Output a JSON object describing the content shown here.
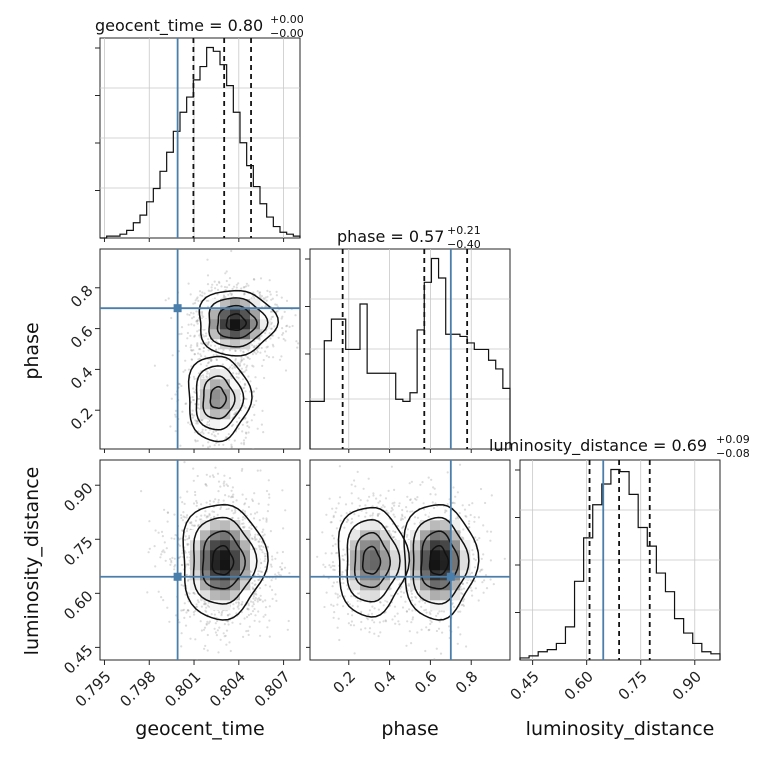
{
  "chart_data": {
    "type": "corner",
    "colors": {
      "truth": "#4a7eab",
      "quantile": "#111111",
      "hist": "#111111",
      "density": "#000000"
    },
    "parameters": [
      {
        "name": "geocent_time",
        "axis_label": "geocent_time",
        "title_main": "geocent_time = 0.80",
        "title_plus": "+0.00",
        "title_minus": "−0.00",
        "range": [
          0.7947,
          0.8081
        ],
        "ticks": [
          0.795,
          0.798,
          0.801,
          0.804,
          0.807
        ],
        "tick_labels": [
          "0.795",
          "0.798",
          "0.801",
          "0.804",
          "0.807"
        ],
        "truth": 0.7999,
        "quantiles": [
          0.80096,
          0.80302,
          0.80482
        ],
        "hist_edges": [
          0.7947,
          0.8081
        ],
        "hist_counts": [
          0,
          1,
          1,
          2,
          4,
          8,
          12,
          19,
          26,
          35,
          45,
          56,
          66,
          74,
          83,
          90,
          100,
          98,
          91,
          80,
          66,
          50,
          38,
          27,
          18,
          11,
          6,
          3,
          2,
          1
        ]
      },
      {
        "name": "phase",
        "axis_label": "phase",
        "title_main": "phase = 0.57",
        "title_plus": "+0.21",
        "title_minus": "−0.40",
        "range": [
          0.01,
          0.99
        ],
        "ticks": [
          0.2,
          0.4,
          0.6,
          0.8
        ],
        "tick_labels": [
          "0.2",
          "0.4",
          "0.6",
          "0.8"
        ],
        "truth": 0.7,
        "quantiles": [
          0.17,
          0.57,
          0.78
        ],
        "hist_edges": [
          0.01,
          0.99
        ],
        "hist_counts": [
          22,
          22,
          50,
          60,
          60,
          46,
          46,
          67,
          35,
          35,
          35,
          35,
          23,
          22,
          26,
          55,
          77,
          88,
          79,
          53,
          53,
          52,
          49,
          46,
          46,
          41,
          37,
          28
        ]
      },
      {
        "name": "luminosity_distance",
        "axis_label": "luminosity_distance",
        "title_main": "luminosity_distance = 0.69",
        "title_plus": "+0.09",
        "title_minus": "−0.08",
        "range": [
          0.415,
          0.97
        ],
        "ticks": [
          0.45,
          0.6,
          0.75,
          0.9
        ],
        "tick_labels": [
          "0.45",
          "0.60",
          "0.75",
          "0.90"
        ],
        "truth": 0.646,
        "quantiles": [
          0.608,
          0.69,
          0.775
        ],
        "hist_edges": [
          0.415,
          0.97
        ],
        "hist_counts": [
          1,
          2,
          4,
          5,
          8,
          16,
          38,
          59,
          75,
          85,
          92,
          91,
          80,
          64,
          55,
          42,
          33,
          20,
          13,
          8,
          4,
          3
        ]
      }
    ],
    "joint": [
      {
        "x": "geocent_time",
        "y": "phase",
        "modes": [
          {
            "mx": 0.8038,
            "my": 0.63,
            "sx": 0.0013,
            "sy": 0.08,
            "w": 0.62
          },
          {
            "mx": 0.8026,
            "my": 0.26,
            "sx": 0.0011,
            "sy": 0.11,
            "w": 0.38
          }
        ]
      },
      {
        "x": "geocent_time",
        "y": "luminosity_distance",
        "modes": [
          {
            "mx": 0.8029,
            "my": 0.69,
            "sx": 0.0014,
            "sy": 0.08,
            "w": 1.0
          }
        ]
      },
      {
        "x": "phase",
        "y": "luminosity_distance",
        "modes": [
          {
            "mx": 0.31,
            "my": 0.69,
            "sx": 0.09,
            "sy": 0.08,
            "w": 0.42
          },
          {
            "mx": 0.64,
            "my": 0.69,
            "sx": 0.09,
            "sy": 0.08,
            "w": 0.58
          }
        ]
      }
    ]
  }
}
